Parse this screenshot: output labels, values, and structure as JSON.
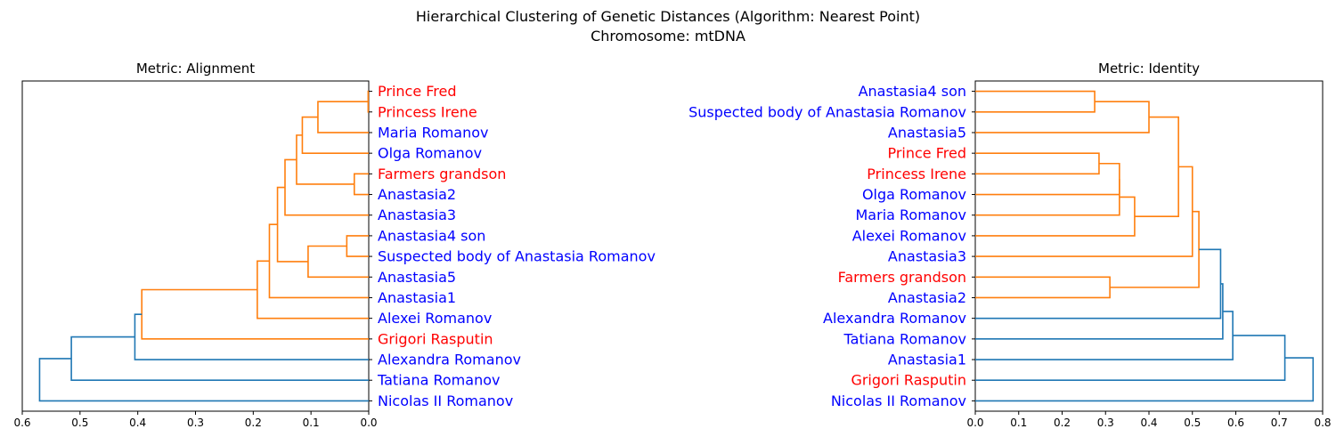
{
  "figure": {
    "title_line1": "Hierarchical Clustering of Genetic Distances (Algorithm: Nearest Point)",
    "title_line2": "Chromosome: mtDNA"
  },
  "colors": {
    "cluster": "#ff7f0e",
    "above_threshold": "#1f77b4",
    "label_red": "#ff0000",
    "label_blue": "#0000ff"
  },
  "chart_data": [
    {
      "type": "dendrogram",
      "title": "Metric: Alignment",
      "orientation": "left",
      "xlim": [
        0.6,
        0.0
      ],
      "xticks": [
        0.6,
        0.5,
        0.4,
        0.3,
        0.2,
        0.1,
        0.0
      ],
      "xtick_labels": [
        "0.6",
        "0.5",
        "0.4",
        "0.3",
        "0.2",
        "0.1",
        "0.0"
      ],
      "leaves": [
        {
          "label": "Prince Fred",
          "color": "red"
        },
        {
          "label": "Princess Irene",
          "color": "red"
        },
        {
          "label": "Maria Romanov",
          "color": "blue"
        },
        {
          "label": "Olga Romanov",
          "color": "blue"
        },
        {
          "label": "Farmers grandson",
          "color": "red"
        },
        {
          "label": "Anastasia2",
          "color": "blue"
        },
        {
          "label": "Anastasia3",
          "color": "blue"
        },
        {
          "label": "Anastasia4 son",
          "color": "blue"
        },
        {
          "label": "Suspected body of Anastasia Romanov",
          "color": "blue"
        },
        {
          "label": "Anastasia5",
          "color": "blue"
        },
        {
          "label": "Anastasia1",
          "color": "blue"
        },
        {
          "label": "Alexei Romanov",
          "color": "blue"
        },
        {
          "label": "Grigori Rasputin",
          "color": "red"
        },
        {
          "label": "Alexandra Romanov",
          "color": "blue"
        },
        {
          "label": "Tatiana Romanov",
          "color": "blue"
        },
        {
          "label": "Nicolas II Romanov",
          "color": "blue"
        }
      ],
      "merges": [
        {
          "id": "A1",
          "left": "L0",
          "right": "L1",
          "height": 0.001,
          "color": "cluster"
        },
        {
          "id": "A2",
          "left": "A1",
          "right": "L2",
          "height": 0.088,
          "color": "cluster"
        },
        {
          "id": "A3",
          "left": "A2",
          "right": "L3",
          "height": 0.115,
          "color": "cluster"
        },
        {
          "id": "A4",
          "left": "L4",
          "right": "L5",
          "height": 0.025,
          "color": "cluster"
        },
        {
          "id": "A5",
          "left": "A3",
          "right": "A4",
          "height": 0.125,
          "color": "cluster"
        },
        {
          "id": "A6",
          "left": "A5",
          "right": "L6",
          "height": 0.145,
          "color": "cluster"
        },
        {
          "id": "A7",
          "left": "L7",
          "right": "L8",
          "height": 0.038,
          "color": "cluster"
        },
        {
          "id": "A8",
          "left": "A7",
          "right": "L9",
          "height": 0.105,
          "color": "cluster"
        },
        {
          "id": "A9",
          "left": "A6",
          "right": "A8",
          "height": 0.158,
          "color": "cluster"
        },
        {
          "id": "A10",
          "left": "A9",
          "right": "L10",
          "height": 0.172,
          "color": "cluster"
        },
        {
          "id": "A11",
          "left": "A10",
          "right": "L11",
          "height": 0.193,
          "color": "cluster"
        },
        {
          "id": "A12",
          "left": "A11",
          "right": "L12",
          "height": 0.393,
          "color": "cluster"
        },
        {
          "id": "A13",
          "left": "A12",
          "right": "L13",
          "height": 0.405,
          "color": "above_threshold"
        },
        {
          "id": "A14",
          "left": "A13",
          "right": "L14",
          "height": 0.515,
          "color": "above_threshold"
        },
        {
          "id": "A15",
          "left": "A14",
          "right": "L15",
          "height": 0.57,
          "color": "above_threshold"
        }
      ]
    },
    {
      "type": "dendrogram",
      "title": "Metric: Identity",
      "orientation": "right",
      "xlim": [
        0.0,
        0.8
      ],
      "xticks": [
        0.0,
        0.1,
        0.2,
        0.3,
        0.4,
        0.5,
        0.6,
        0.7,
        0.8
      ],
      "xtick_labels": [
        "0.0",
        "0.1",
        "0.2",
        "0.3",
        "0.4",
        "0.5",
        "0.6",
        "0.7",
        "0.8"
      ],
      "leaves": [
        {
          "label": "Anastasia4 son",
          "color": "blue"
        },
        {
          "label": "Suspected body of Anastasia Romanov",
          "color": "blue"
        },
        {
          "label": "Anastasia5",
          "color": "blue"
        },
        {
          "label": "Prince Fred",
          "color": "red"
        },
        {
          "label": "Princess Irene",
          "color": "red"
        },
        {
          "label": "Olga Romanov",
          "color": "blue"
        },
        {
          "label": "Maria Romanov",
          "color": "blue"
        },
        {
          "label": "Alexei Romanov",
          "color": "blue"
        },
        {
          "label": "Anastasia3",
          "color": "blue"
        },
        {
          "label": "Farmers grandson",
          "color": "red"
        },
        {
          "label": "Anastasia2",
          "color": "blue"
        },
        {
          "label": "Alexandra Romanov",
          "color": "blue"
        },
        {
          "label": "Tatiana Romanov",
          "color": "blue"
        },
        {
          "label": "Anastasia1",
          "color": "blue"
        },
        {
          "label": "Grigori Rasputin",
          "color": "red"
        },
        {
          "label": "Nicolas II Romanov",
          "color": "blue"
        }
      ],
      "merges": [
        {
          "id": "B1",
          "left": "L0",
          "right": "L1",
          "height": 0.275,
          "color": "cluster"
        },
        {
          "id": "B2",
          "left": "B1",
          "right": "L2",
          "height": 0.4,
          "color": "cluster"
        },
        {
          "id": "B3",
          "left": "L3",
          "right": "L4",
          "height": 0.285,
          "color": "cluster"
        },
        {
          "id": "B4",
          "left": "B3",
          "right": "L5",
          "height": 0.332,
          "color": "cluster"
        },
        {
          "id": "B5",
          "left": "B4",
          "right": "L6",
          "height": 0.332,
          "color": "cluster"
        },
        {
          "id": "B6",
          "left": "B5",
          "right": "L7",
          "height": 0.367,
          "color": "cluster"
        },
        {
          "id": "B7",
          "left": "B2",
          "right": "B6",
          "height": 0.468,
          "color": "cluster"
        },
        {
          "id": "B8",
          "left": "B7",
          "right": "L8",
          "height": 0.5,
          "color": "cluster"
        },
        {
          "id": "B9",
          "left": "L9",
          "right": "L10",
          "height": 0.31,
          "color": "cluster"
        },
        {
          "id": "B10",
          "left": "B8",
          "right": "B9",
          "height": 0.515,
          "color": "cluster"
        },
        {
          "id": "B11",
          "left": "B10",
          "right": "L11",
          "height": 0.565,
          "color": "above_threshold"
        },
        {
          "id": "B12",
          "left": "B11",
          "right": "L12",
          "height": 0.57,
          "color": "above_threshold"
        },
        {
          "id": "B13",
          "left": "B12",
          "right": "L13",
          "height": 0.593,
          "color": "above_threshold"
        },
        {
          "id": "B14",
          "left": "B13",
          "right": "L14",
          "height": 0.713,
          "color": "above_threshold"
        },
        {
          "id": "B15",
          "left": "B14",
          "right": "L15",
          "height": 0.778,
          "color": "above_threshold"
        }
      ]
    }
  ]
}
